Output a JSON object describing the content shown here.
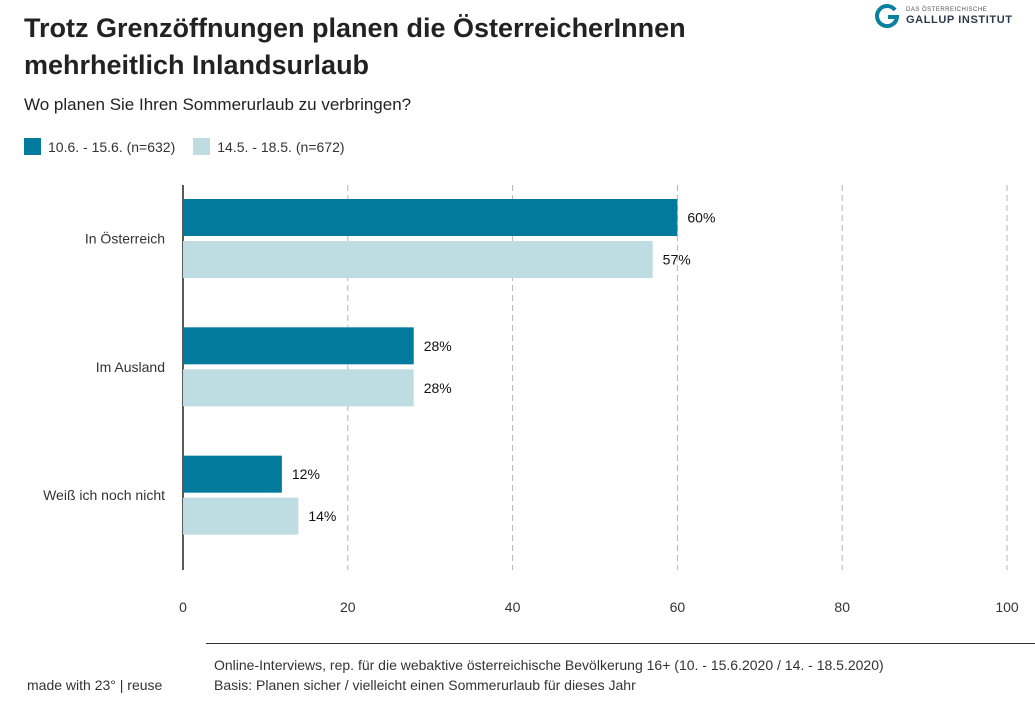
{
  "header": {
    "title": "Trotz Grenzöffnungen planen die ÖsterreicherInnen mehrheitlich Inlandsurlaub",
    "subtitle": "Wo planen Sie Ihren Sommerurlaub zu verbringen?"
  },
  "logo": {
    "small_text": "DAS ÖSTERREICHISCHE",
    "big_text": "GALLUP INSTITUT",
    "icon": "gallup-g-icon",
    "color": "#0a7fa0"
  },
  "legend": [
    {
      "label": "10.6. - 15.6. (n=632)",
      "color": "#007b9e"
    },
    {
      "label": "14.5. - 18.5. (n=672)",
      "color": "#bddde2"
    }
  ],
  "chart_data": {
    "type": "bar",
    "orientation": "horizontal",
    "categories": [
      "In Österreich",
      "Im Ausland",
      "Weiß ich noch nicht"
    ],
    "series": [
      {
        "name": "10.6. - 15.6. (n=632)",
        "values": [
          60,
          28,
          12
        ],
        "color": "#007b9e"
      },
      {
        "name": "14.5. - 18.5. (n=672)",
        "values": [
          57,
          28,
          14
        ],
        "color": "#bddde2"
      }
    ],
    "value_suffix": "%",
    "xlim": [
      0,
      100
    ],
    "x_ticks": [
      0,
      20,
      40,
      60,
      80,
      100
    ],
    "grid": "vertical dashed",
    "legend_position": "top-left"
  },
  "footer": {
    "credit": "made with 23° | reuse",
    "note_line1": "Online-Interviews, rep. für die webaktive österreichische Bevölkerung 16+ (10. - 15.6.2020 / 14. - 18.5.2020)",
    "note_line2": "Basis: Planen sicher / vielleicht einen Sommerurlaub für dieses Jahr"
  }
}
